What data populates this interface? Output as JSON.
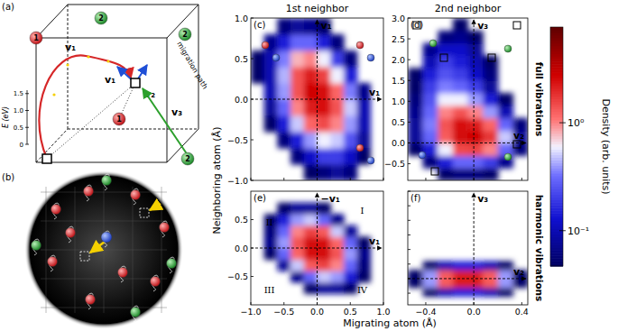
{
  "figure": {
    "x_label": "Migrating atom (Å)",
    "y_label": "Neighboring atom (Å)",
    "column_titles": [
      "1st neighbor",
      "2nd neighbor"
    ],
    "row_labels": [
      "full vibrations",
      "harmonic vibrations"
    ],
    "colorbar": {
      "label": "Density (arb. units)",
      "range": [
        0.047,
        7.7
      ],
      "log": true,
      "ticks": [
        {
          "value": 1,
          "label": "10⁰"
        },
        {
          "value": 0.1,
          "label": "10⁻¹"
        }
      ]
    }
  },
  "chart_data": [
    {
      "type": "heatmap",
      "title": "(c)",
      "xlim": [
        -1,
        1
      ],
      "ylim": [
        -1,
        1
      ],
      "xticks": [
        {
          "value": -1,
          "label": "−1.0"
        },
        {
          "value": -0.5,
          "label": "−0.5"
        },
        {
          "value": 0,
          "label": "0.0"
        },
        0.5,
        {
          "value": 1,
          "label": "1.0"
        }
      ],
      "yticks": [
        {
          "value": -1,
          "label": "−1.0"
        },
        {
          "value": -0.5,
          "label": "−0.5"
        },
        {
          "value": 0,
          "label": "0.0"
        },
        0.5,
        {
          "value": 1,
          "label": "1.0"
        }
      ],
      "tick_labels": "y",
      "x_edges": [
        -1,
        -0.8,
        -0.6,
        -0.4,
        -0.2,
        0,
        0.2,
        0.4,
        0.6,
        0.8,
        1
      ],
      "y_edges": [
        -1,
        -0.8,
        -0.6,
        -0.4,
        -0.2,
        0,
        0.2,
        0.4,
        0.6,
        0.8,
        1
      ],
      "cells": [
        [
          null,
          null,
          null,
          null,
          0.05,
          0.06,
          0.08,
          0.06,
          null,
          null
        ],
        [
          null,
          null,
          null,
          0.06,
          0.12,
          0.2,
          0.2,
          0.12,
          0.05,
          null
        ],
        [
          null,
          null,
          0.06,
          0.15,
          0.4,
          0.6,
          0.5,
          0.25,
          0.08,
          null
        ],
        [
          null,
          0.05,
          0.15,
          0.5,
          1.2,
          1.5,
          1.0,
          0.4,
          0.1,
          null
        ],
        [
          null,
          0.08,
          0.3,
          1.0,
          2.2,
          2.4,
          1.4,
          0.5,
          0.1,
          null
        ],
        [
          null,
          0.1,
          0.4,
          1.4,
          2.8,
          2.5,
          1.2,
          0.35,
          0.07,
          null
        ],
        [
          0.05,
          0.1,
          0.45,
          1.4,
          2.2,
          1.6,
          0.6,
          0.15,
          null,
          null
        ],
        [
          0.05,
          0.1,
          0.35,
          0.8,
          1.0,
          0.6,
          0.2,
          0.06,
          null,
          null
        ],
        [
          null,
          0.07,
          0.15,
          0.3,
          0.3,
          0.15,
          0.06,
          null,
          null,
          null
        ],
        [
          null,
          null,
          0.06,
          0.08,
          0.07,
          0.05,
          null,
          null,
          null,
          null
        ]
      ],
      "annotations": {
        "x_arrow": "v₁",
        "y_arrow": "v₁"
      }
    },
    {
      "type": "heatmap",
      "title": "(d)",
      "xlim": [
        -0.55,
        0.45
      ],
      "ylim": [
        -0.9,
        3.0
      ],
      "xticks": [
        {
          "value": -0.4,
          "label": "−0.4"
        },
        {
          "value": 0,
          "label": "0.0"
        },
        0.4
      ],
      "yticks": [
        {
          "value": -0.5,
          "label": "−0.5"
        },
        {
          "value": 0,
          "label": "0.0"
        },
        0.5,
        {
          "value": 1,
          "label": "1.0"
        },
        1.5,
        {
          "value": 2,
          "label": "2.0"
        },
        2.5,
        {
          "value": 3,
          "label": "3.0"
        }
      ],
      "tick_labels": "y",
      "x_edges": [
        -0.55,
        -0.425,
        -0.3,
        -0.175,
        -0.05,
        0.075,
        0.2,
        0.325,
        0.45
      ],
      "y_edges": [
        -0.9,
        -0.6,
        -0.3,
        0,
        0.3,
        0.6,
        0.9,
        1.2,
        1.5,
        1.8,
        2.1,
        2.4,
        2.7,
        3.0
      ],
      "cells": [
        [
          null,
          null,
          0.05,
          0.06,
          0.06,
          0.05,
          null,
          null
        ],
        [
          null,
          0.06,
          0.15,
          0.3,
          0.3,
          0.2,
          0.07,
          null
        ],
        [
          0.05,
          0.15,
          0.6,
          1.5,
          1.6,
          1.0,
          0.3,
          0.06
        ],
        [
          0.08,
          0.3,
          1.3,
          2.6,
          2.8,
          1.8,
          0.5,
          0.08
        ],
        [
          0.08,
          0.35,
          1.4,
          2.4,
          2.2,
          1.2,
          0.3,
          0.06
        ],
        [
          0.07,
          0.3,
          1.0,
          1.4,
          1.0,
          0.4,
          0.1,
          null
        ],
        [
          0.06,
          0.25,
          0.6,
          0.6,
          0.4,
          0.15,
          0.05,
          null
        ],
        [
          0.05,
          0.2,
          0.35,
          0.3,
          0.2,
          0.08,
          null,
          null
        ],
        [
          0.05,
          0.15,
          0.25,
          0.2,
          0.12,
          0.06,
          null,
          null
        ],
        [
          null,
          0.1,
          0.2,
          0.15,
          0.1,
          0.05,
          null,
          null
        ],
        [
          null,
          0.07,
          0.12,
          0.12,
          0.08,
          null,
          null,
          null
        ],
        [
          null,
          null,
          0.06,
          0.07,
          0.05,
          null,
          null,
          null
        ],
        [
          null,
          null,
          null,
          0.05,
          null,
          null,
          null,
          null
        ]
      ],
      "annotations": {
        "x_arrow": "v₂",
        "y_arrow": "v₃"
      }
    },
    {
      "type": "heatmap",
      "title": "(e)",
      "xlim": [
        -1,
        1
      ],
      "ylim": [
        -1,
        1
      ],
      "xticks": [
        {
          "value": -1,
          "label": "−1.0"
        },
        {
          "value": -0.5,
          "label": "−0.5"
        },
        {
          "value": 0,
          "label": "0.0"
        },
        0.5,
        {
          "value": 1,
          "label": "1.0"
        }
      ],
      "yticks": [
        {
          "value": -0.5,
          "label": "−0.5"
        },
        {
          "value": 0,
          "label": "0.0"
        },
        0.5
      ],
      "tick_labels": true,
      "x_edges": [
        -1,
        -0.8,
        -0.6,
        -0.4,
        -0.2,
        0,
        0.2,
        0.4,
        0.6,
        0.8,
        1
      ],
      "y_edges": [
        -1,
        -0.8,
        -0.6,
        -0.4,
        -0.2,
        0,
        0.2,
        0.4,
        0.6,
        0.8,
        1
      ],
      "cells": [
        [
          null,
          null,
          null,
          null,
          null,
          null,
          null,
          null,
          null,
          null
        ],
        [
          null,
          null,
          null,
          null,
          0.05,
          0.08,
          0.08,
          0.05,
          null,
          null
        ],
        [
          null,
          null,
          null,
          0.07,
          0.3,
          0.5,
          0.4,
          0.15,
          0.05,
          null
        ],
        [
          null,
          null,
          0.08,
          0.5,
          1.3,
          1.6,
          1.0,
          0.3,
          0.06,
          null
        ],
        [
          null,
          0.05,
          0.3,
          1.2,
          2.5,
          2.6,
          1.4,
          0.4,
          0.07,
          null
        ],
        [
          null,
          0.07,
          0.4,
          1.4,
          2.6,
          2.5,
          1.2,
          0.3,
          0.05,
          null
        ],
        [
          null,
          0.06,
          0.3,
          1.0,
          1.6,
          1.3,
          0.5,
          0.08,
          null,
          null
        ],
        [
          null,
          0.05,
          0.15,
          0.4,
          0.5,
          0.3,
          0.07,
          null,
          null,
          null
        ],
        [
          null,
          null,
          0.05,
          0.08,
          0.08,
          0.05,
          null,
          null,
          null,
          null
        ],
        [
          null,
          null,
          null,
          null,
          null,
          null,
          null,
          null,
          null,
          null
        ]
      ],
      "annotations": {
        "x_arrow": "v₁",
        "y_arrow": "−v₁",
        "quadrants": [
          "I",
          "II",
          "III",
          "IV"
        ]
      }
    },
    {
      "type": "heatmap",
      "title": "(f)",
      "xlim": [
        -0.55,
        0.45
      ],
      "ylim": [
        -0.9,
        3.0
      ],
      "xticks": [
        {
          "value": -0.4,
          "label": "−0.4"
        },
        {
          "value": 0,
          "label": "0.0"
        },
        0.4
      ],
      "yticks": [
        {
          "value": -0.5,
          "label": "−0.5"
        },
        {
          "value": 0,
          "label": "0.0"
        },
        0.5,
        {
          "value": 1,
          "label": "1.0"
        },
        1.5,
        {
          "value": 2,
          "label": "2.0"
        },
        2.5,
        {
          "value": 3,
          "label": "3.0"
        }
      ],
      "tick_labels": "x",
      "x_edges": [
        -0.55,
        -0.425,
        -0.3,
        -0.175,
        -0.05,
        0.075,
        0.2,
        0.325,
        0.45
      ],
      "y_edges": [
        -0.9,
        -0.6,
        -0.3,
        0,
        0.3,
        0.6,
        0.9,
        1.2,
        1.5,
        1.8,
        2.1,
        2.4,
        2.7,
        3.0
      ],
      "cells": [
        [
          null,
          null,
          null,
          null,
          null,
          null,
          null,
          null
        ],
        [
          null,
          0.05,
          0.1,
          0.15,
          0.15,
          0.1,
          0.05,
          null
        ],
        [
          0.05,
          0.4,
          1.3,
          2.2,
          2.2,
          1.3,
          0.4,
          0.05
        ],
        [
          0.05,
          0.4,
          1.3,
          2.2,
          2.2,
          1.3,
          0.4,
          0.05
        ],
        [
          null,
          0.05,
          0.1,
          0.15,
          0.15,
          0.1,
          0.05,
          null
        ],
        [
          null,
          null,
          null,
          null,
          null,
          null,
          null,
          null
        ],
        [
          null,
          null,
          null,
          null,
          null,
          null,
          null,
          null
        ],
        [
          null,
          null,
          null,
          null,
          null,
          null,
          null,
          null
        ],
        [
          null,
          null,
          null,
          null,
          null,
          null,
          null,
          null
        ],
        [
          null,
          null,
          null,
          null,
          null,
          null,
          null,
          null
        ],
        [
          null,
          null,
          null,
          null,
          null,
          null,
          null,
          null
        ],
        [
          null,
          null,
          null,
          null,
          null,
          null,
          null,
          null
        ],
        [
          null,
          null,
          null,
          null,
          null,
          null,
          null,
          null
        ]
      ],
      "annotations": {
        "x_arrow": "v₂",
        "y_arrow": "v₃"
      }
    }
  ],
  "diagram_a": {
    "label": "(a)",
    "atoms": [
      {
        "label": "1",
        "color": "#d62728"
      },
      {
        "label": "1",
        "color": "#d62728"
      },
      {
        "label": "2",
        "color": "#2ca02c"
      },
      {
        "label": "2",
        "color": "#2ca02c"
      },
      {
        "label": "2",
        "color": "#2ca02c"
      }
    ],
    "vectors": [
      {
        "label": "v₁",
        "color": "#d62728"
      },
      {
        "label": "v₁",
        "color": "#1f4fd6"
      },
      {
        "label": "v₂",
        "color": "#1f4fd6"
      },
      {
        "label": "v₃",
        "color": "#2ca02c"
      }
    ],
    "path_label": "migration path",
    "energy_axis": {
      "label": "E (eV)",
      "range": [
        0,
        1.6
      ],
      "ticks": [
        0,
        0.5,
        {
          "value": 1,
          "label": "1.0"
        },
        1.5
      ]
    }
  },
  "diagram_b": {
    "label": "(b)"
  }
}
